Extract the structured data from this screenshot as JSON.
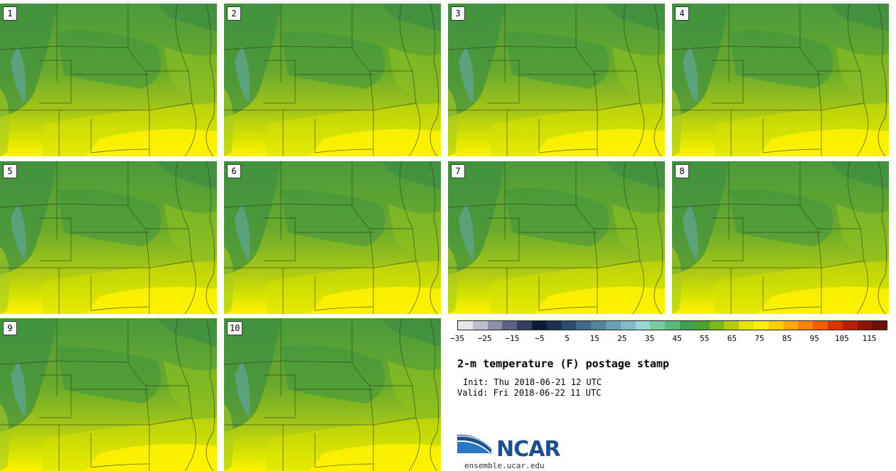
{
  "panels": [
    {
      "label": "1"
    },
    {
      "label": "2"
    },
    {
      "label": "3"
    },
    {
      "label": "4"
    },
    {
      "label": "5"
    },
    {
      "label": "6"
    },
    {
      "label": "7"
    },
    {
      "label": "8"
    },
    {
      "label": "9"
    },
    {
      "label": "10"
    }
  ],
  "colorbar": {
    "colors": [
      "#e4e6ec",
      "#bcbfcb",
      "#8d92a8",
      "#5d6483",
      "#333d5e",
      "#0f1a35",
      "#1c2f4d",
      "#2d4d6c",
      "#3f6a85",
      "#52869b",
      "#67a1b2",
      "#7fbcc6",
      "#98d7d6",
      "#7ccaa0",
      "#5cb77e",
      "#3f9f54",
      "#4da22f",
      "#7fb51d",
      "#b4ce0f",
      "#e3e600",
      "#fff000",
      "#ffcf00",
      "#ffa800",
      "#ff8200",
      "#f65c00",
      "#d83500",
      "#b81e00",
      "#8f1300",
      "#6e1000"
    ],
    "tick_labels": [
      "−35",
      "−25",
      "−15",
      "−5",
      "5",
      "15",
      "25",
      "35",
      "45",
      "55",
      "65",
      "75",
      "85",
      "95",
      "105",
      "115"
    ]
  },
  "title": "2-m temperature (F) postage stamp",
  "init": "Init: Thu 2018-06-21 12 UTC",
  "valid": "Valid: Fri 2018-06-22 11 UTC",
  "logo": {
    "text": "NCAR",
    "url": "ensemble.ucar.edu"
  }
}
